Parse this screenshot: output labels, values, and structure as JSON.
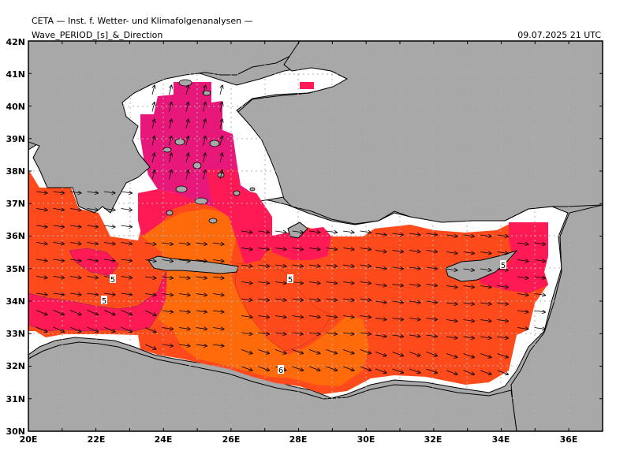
{
  "header": {
    "institute": "CETA — Inst. f. Wetter- und Klimafolgenanalysen —",
    "title": "Wave_PERIOD_[s]_&_Direction",
    "datetime": "09.07.2025 21 UTC"
  },
  "map": {
    "lon_range": [
      20,
      37
    ],
    "lat_range": [
      30,
      42
    ],
    "lon_ticks": [
      "20E",
      "22E",
      "24E",
      "26E",
      "28E",
      "30E",
      "32E",
      "34E",
      "36E"
    ],
    "lat_ticks": [
      "30N",
      "31N",
      "32N",
      "33N",
      "34N",
      "35N",
      "36N",
      "37N",
      "38N",
      "39N",
      "40N",
      "41N",
      "42N"
    ],
    "contour_labels": [
      "5",
      "5",
      "5",
      "6",
      "5"
    ],
    "colors": {
      "land": "#a8a8a8",
      "sea_nodata": "#ffffff",
      "period_5": "#ff4a1c",
      "period_6": "#ff6a0a",
      "period_4": "#ff1a55",
      "period_3": "#e8187a",
      "period_4_5": "#f0306a"
    }
  }
}
